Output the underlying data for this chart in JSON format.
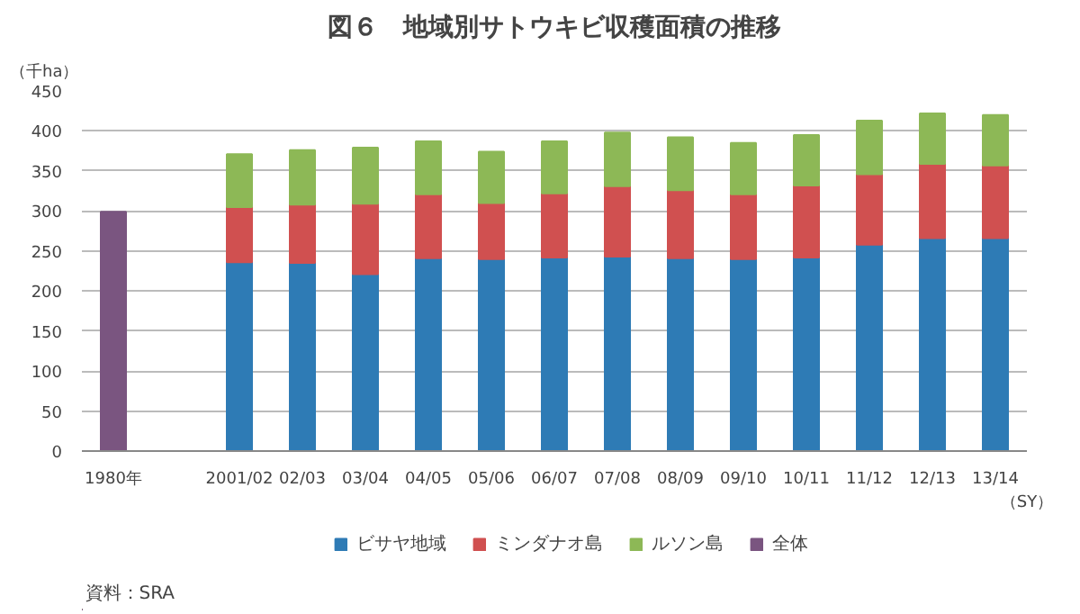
{
  "chart_data": {
    "type": "bar",
    "title": "図６　地域別サトウキビ収穫面積の推移",
    "ylabel": "（千ha）",
    "xlabel": "（SY）",
    "categories": [
      "1980年",
      null,
      "2001/02",
      "02/03",
      "03/04",
      "04/05",
      "05/06",
      "06/07",
      "07/08",
      "08/09",
      "09/10",
      "10/11",
      "11/12",
      "12/13",
      "13/14"
    ],
    "stacked": true,
    "series": [
      {
        "name": "ビサヤ地域",
        "color": "#2e7bb5",
        "values": [
          null,
          null,
          236,
          235,
          221,
          241,
          240,
          242,
          243,
          241,
          240,
          242,
          258,
          266,
          266
        ]
      },
      {
        "name": "ミンダナオ島",
        "color": "#d05050",
        "values": [
          null,
          null,
          69,
          73,
          88,
          80,
          70,
          80,
          88,
          85,
          81,
          90,
          88,
          93,
          91
        ]
      },
      {
        "name": "ルソン島",
        "color": "#8db856",
        "values": [
          null,
          null,
          66,
          68,
          70,
          66,
          64,
          65,
          67,
          66,
          64,
          63,
          67,
          63,
          63
        ]
      },
      {
        "name": "全体",
        "color": "#7a5580",
        "values": [
          299,
          null,
          null,
          null,
          null,
          null,
          null,
          null,
          null,
          null,
          null,
          null,
          null,
          null,
          null
        ]
      }
    ],
    "ylim": [
      0,
      450
    ],
    "yticks": [
      0,
      50,
      100,
      150,
      200,
      250,
      300,
      350,
      400,
      450
    ],
    "grid": "y",
    "legend": "bottom",
    "annotations": [
      "資料：SRA"
    ]
  }
}
